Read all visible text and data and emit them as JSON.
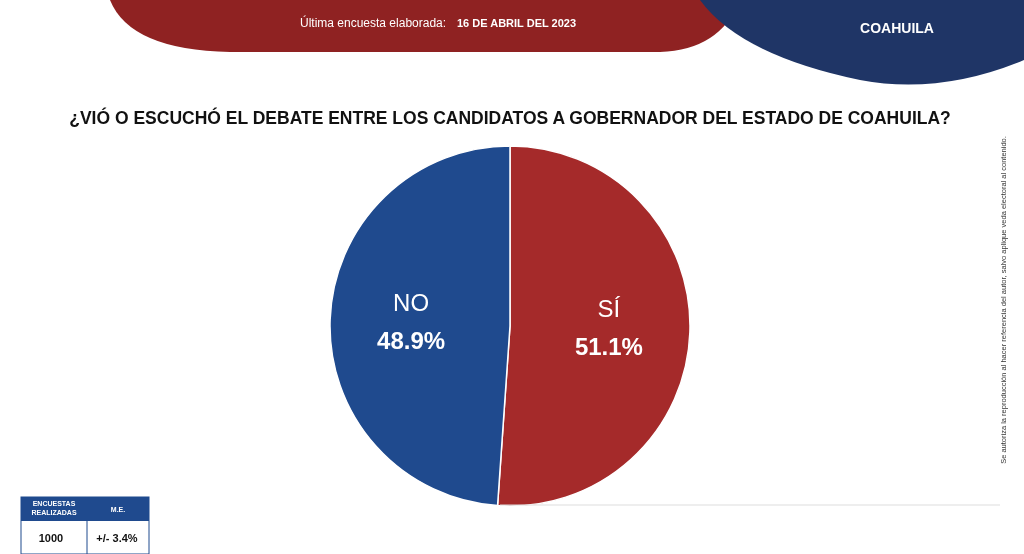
{
  "chart_data": {
    "type": "pie",
    "title": "¿VIÓ O ESCUCHÓ EL DEBATE ENTRE LOS CANDIDATOS A GOBERNADOR DEL ESTADO DE COAHUILA?",
    "categories": [
      "SÍ",
      "NO"
    ],
    "values": [
      51.1,
      48.9
    ],
    "colors": [
      "#a52a2a",
      "#1f4a8e"
    ],
    "value_labels": [
      "51.1%",
      "48.9%"
    ],
    "annotations": [
      "Última encuesta elaborada:",
      "16 DE ABRIL DEL 2023",
      "COAHUILA",
      "ENCUESTAS REALIZADAS",
      "M.E.",
      "1000",
      "+/- 3.4%",
      "Se autoriza la reproducción al hacer referencia del autor, salvo aplique veda electoral al contenido."
    ]
  }
}
